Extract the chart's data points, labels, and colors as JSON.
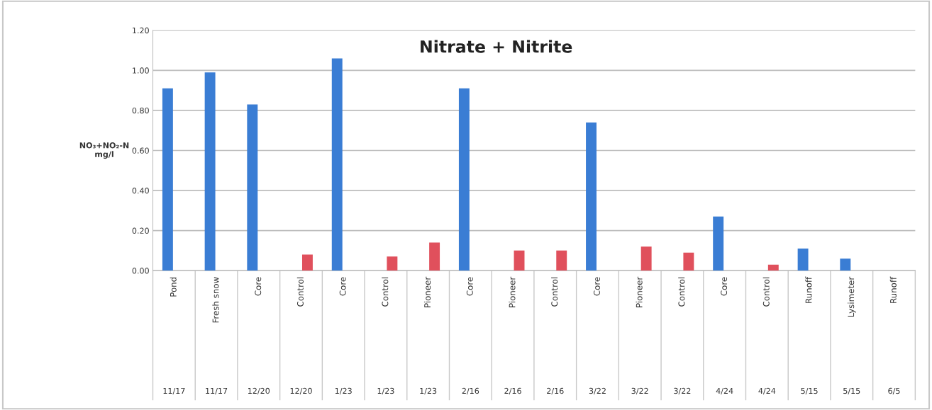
{
  "chart_data": {
    "type": "bar",
    "title": "Nitrate + Nitrite",
    "ylabel": "NO₃+NO₂-N\nmg/l",
    "categories": [
      "Pond\n11/17",
      "Fresh snow\n11/17",
      "Core\n12/20",
      "Control\n12/20",
      "Core\n1/23",
      "Control\n1/23",
      "Pioneer\n1/23",
      "Core\n2/16",
      "Pioneer\n2/16",
      "Control\n2/16",
      "Core\n3/22",
      "Pioneer\n3/22",
      "Control\n3/22",
      "Core\n4/24",
      "Control\n4/24",
      "Runoff\n5/15",
      "Lysimeter\n5/15",
      "Runoff\n6/5"
    ],
    "series": [
      {
        "color": "#3a7dd4",
        "values": [
          0.91,
          0.99,
          0.83,
          null,
          1.06,
          null,
          null,
          0.91,
          null,
          null,
          0.74,
          null,
          null,
          0.27,
          null,
          0.11,
          0.06,
          null
        ]
      },
      {
        "color": "#e0505c",
        "values": [
          null,
          null,
          null,
          0.08,
          null,
          0.07,
          0.14,
          null,
          0.1,
          0.1,
          null,
          0.12,
          0.09,
          null,
          0.03,
          null,
          null,
          null
        ]
      }
    ],
    "ylim": [
      0,
      1.2
    ],
    "yticks": [
      {
        "value": 0,
        "label": "0.00"
      },
      {
        "value": 0.2,
        "label": "0.20"
      },
      {
        "value": 0.4,
        "label": "0.40"
      },
      {
        "value": 0.6,
        "label": "0.60"
      },
      {
        "value": 0.8,
        "label": "0.80"
      },
      {
        "value": 1.0,
        "label": "1.00"
      },
      {
        "value": 1.2,
        "label": "1.20"
      }
    ],
    "grid": "y"
  }
}
